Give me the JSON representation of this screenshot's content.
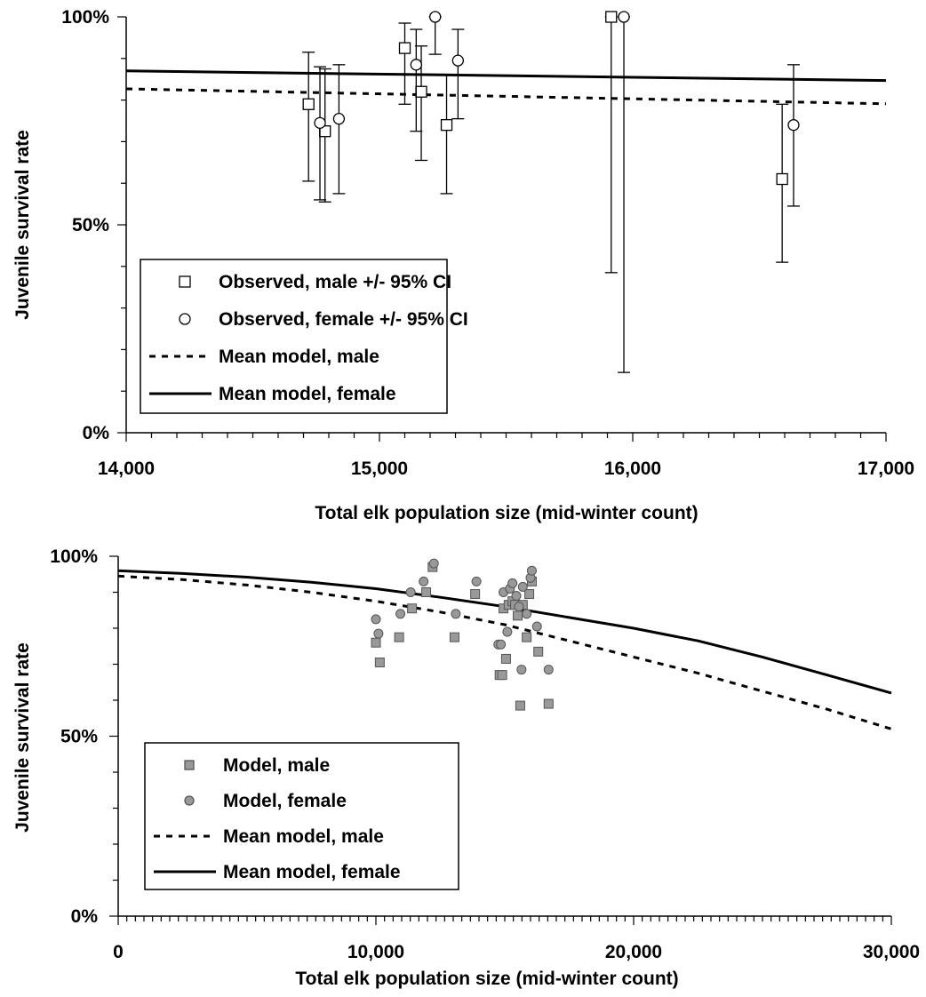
{
  "chart_data": [
    {
      "type": "scatter",
      "xlabel": "Total elk population size (mid-winter count)",
      "ylabel": "Juvenile survival rate",
      "xlim": [
        14000,
        17000
      ],
      "ylim": [
        0,
        1
      ],
      "x_ticks": [
        {
          "value": 14000,
          "label": "14,000"
        },
        {
          "value": 15000,
          "label": "15,000"
        },
        {
          "value": 16000,
          "label": "16,000"
        },
        {
          "value": 17000,
          "label": "17,000"
        }
      ],
      "y_ticks": [
        {
          "value": 0,
          "label": "0%"
        },
        {
          "value": 0.5,
          "label": "50%"
        },
        {
          "value": 1,
          "label": "100%"
        }
      ],
      "legend_position": "bottom-left",
      "series": [
        {
          "name": "Observed, male +/- 95% CI",
          "kind": "points-errorbars",
          "marker": "square",
          "points": [
            {
              "x": 14720,
              "y": 0.79,
              "lo": 0.605,
              "hi": 0.915
            },
            {
              "x": 14785,
              "y": 0.725,
              "lo": 0.555,
              "hi": 0.875
            },
            {
              "x": 15100,
              "y": 0.925,
              "lo": 0.79,
              "hi": 0.985
            },
            {
              "x": 15165,
              "y": 0.82,
              "lo": 0.655,
              "hi": 0.93
            },
            {
              "x": 15265,
              "y": 0.74,
              "lo": 0.575,
              "hi": 0.86
            },
            {
              "x": 15915,
              "y": 1.0,
              "lo": 0.385,
              "hi": 1.0
            },
            {
              "x": 16590,
              "y": 0.61,
              "lo": 0.41,
              "hi": 0.79
            }
          ]
        },
        {
          "name": "Observed, female +/- 95% CI",
          "kind": "points-errorbars",
          "marker": "circle",
          "points": [
            {
              "x": 14765,
              "y": 0.745,
              "lo": 0.56,
              "hi": 0.88
            },
            {
              "x": 14840,
              "y": 0.755,
              "lo": 0.575,
              "hi": 0.885
            },
            {
              "x": 15145,
              "y": 0.885,
              "lo": 0.725,
              "hi": 0.97
            },
            {
              "x": 15220,
              "y": 1.0,
              "lo": 0.91,
              "hi": 1.0
            },
            {
              "x": 15310,
              "y": 0.895,
              "lo": 0.755,
              "hi": 0.97
            },
            {
              "x": 15965,
              "y": 1.0,
              "lo": 0.145,
              "hi": 1.0
            },
            {
              "x": 16635,
              "y": 0.74,
              "lo": 0.545,
              "hi": 0.885
            }
          ]
        },
        {
          "name": "Mean model, male",
          "kind": "line",
          "dash": true,
          "x": [
            14000,
            17000
          ],
          "y": [
            0.827,
            0.791
          ]
        },
        {
          "name": "Mean model, female",
          "kind": "line",
          "dash": false,
          "x": [
            14000,
            17000
          ],
          "y": [
            0.87,
            0.847
          ]
        }
      ]
    },
    {
      "type": "scatter",
      "xlabel": "Total elk population size (mid-winter count)",
      "ylabel": "Juvenile survival rate",
      "xlim": [
        0,
        30000
      ],
      "ylim": [
        0,
        1
      ],
      "x_ticks": [
        {
          "value": 0,
          "label": "0"
        },
        {
          "value": 10000,
          "label": "10,000"
        },
        {
          "value": 20000,
          "label": "20,000"
        },
        {
          "value": 30000,
          "label": "30,000"
        }
      ],
      "y_ticks": [
        {
          "value": 0,
          "label": "0%"
        },
        {
          "value": 0.5,
          "label": "50%"
        },
        {
          "value": 1,
          "label": "100%"
        }
      ],
      "legend_position": "bottom-left",
      "series": [
        {
          "name": "Model, male",
          "kind": "points",
          "marker": "square",
          "color": "#999999",
          "points": [
            {
              "x": 10000,
              "y": 0.76
            },
            {
              "x": 10150,
              "y": 0.705
            },
            {
              "x": 10900,
              "y": 0.775
            },
            {
              "x": 11400,
              "y": 0.855
            },
            {
              "x": 11950,
              "y": 0.9
            },
            {
              "x": 12200,
              "y": 0.97
            },
            {
              "x": 13050,
              "y": 0.775
            },
            {
              "x": 13850,
              "y": 0.895
            },
            {
              "x": 14800,
              "y": 0.67
            },
            {
              "x": 14900,
              "y": 0.67
            },
            {
              "x": 14950,
              "y": 0.855
            },
            {
              "x": 15050,
              "y": 0.715
            },
            {
              "x": 15150,
              "y": 0.865
            },
            {
              "x": 15300,
              "y": 0.875
            },
            {
              "x": 15400,
              "y": 0.865
            },
            {
              "x": 15500,
              "y": 0.835
            },
            {
              "x": 15600,
              "y": 0.585
            },
            {
              "x": 15700,
              "y": 0.865
            },
            {
              "x": 15850,
              "y": 0.775
            },
            {
              "x": 15950,
              "y": 0.895
            },
            {
              "x": 16050,
              "y": 0.93
            },
            {
              "x": 16300,
              "y": 0.735
            },
            {
              "x": 16700,
              "y": 0.59
            }
          ]
        },
        {
          "name": "Model, female",
          "kind": "points",
          "marker": "circle",
          "color": "#999999",
          "points": [
            {
              "x": 10000,
              "y": 0.825
            },
            {
              "x": 10100,
              "y": 0.785
            },
            {
              "x": 10950,
              "y": 0.84
            },
            {
              "x": 11350,
              "y": 0.9
            },
            {
              "x": 11850,
              "y": 0.93
            },
            {
              "x": 12250,
              "y": 0.98
            },
            {
              "x": 13100,
              "y": 0.84
            },
            {
              "x": 13900,
              "y": 0.93
            },
            {
              "x": 14750,
              "y": 0.755
            },
            {
              "x": 14850,
              "y": 0.755
            },
            {
              "x": 14950,
              "y": 0.9
            },
            {
              "x": 15100,
              "y": 0.79
            },
            {
              "x": 15200,
              "y": 0.91
            },
            {
              "x": 15300,
              "y": 0.925
            },
            {
              "x": 15450,
              "y": 0.89
            },
            {
              "x": 15550,
              "y": 0.86
            },
            {
              "x": 15650,
              "y": 0.685
            },
            {
              "x": 15700,
              "y": 0.915
            },
            {
              "x": 15850,
              "y": 0.84
            },
            {
              "x": 16000,
              "y": 0.94
            },
            {
              "x": 16050,
              "y": 0.96
            },
            {
              "x": 16250,
              "y": 0.805
            },
            {
              "x": 16700,
              "y": 0.685
            }
          ]
        },
        {
          "name": "Mean model, male",
          "kind": "line",
          "dash": true,
          "x": [
            0,
            2500,
            5000,
            7500,
            10000,
            12500,
            15000,
            17500,
            20000,
            22500,
            25000,
            27500,
            30000
          ],
          "y": [
            0.945,
            0.935,
            0.92,
            0.9,
            0.875,
            0.845,
            0.81,
            0.765,
            0.72,
            0.675,
            0.625,
            0.575,
            0.52
          ]
        },
        {
          "name": "Mean model, female",
          "kind": "line",
          "dash": false,
          "x": [
            0,
            2500,
            5000,
            7500,
            10000,
            12500,
            15000,
            17500,
            20000,
            22500,
            25000,
            27500,
            30000
          ],
          "y": [
            0.96,
            0.952,
            0.942,
            0.928,
            0.91,
            0.886,
            0.86,
            0.83,
            0.8,
            0.765,
            0.72,
            0.67,
            0.62
          ]
        }
      ]
    }
  ]
}
